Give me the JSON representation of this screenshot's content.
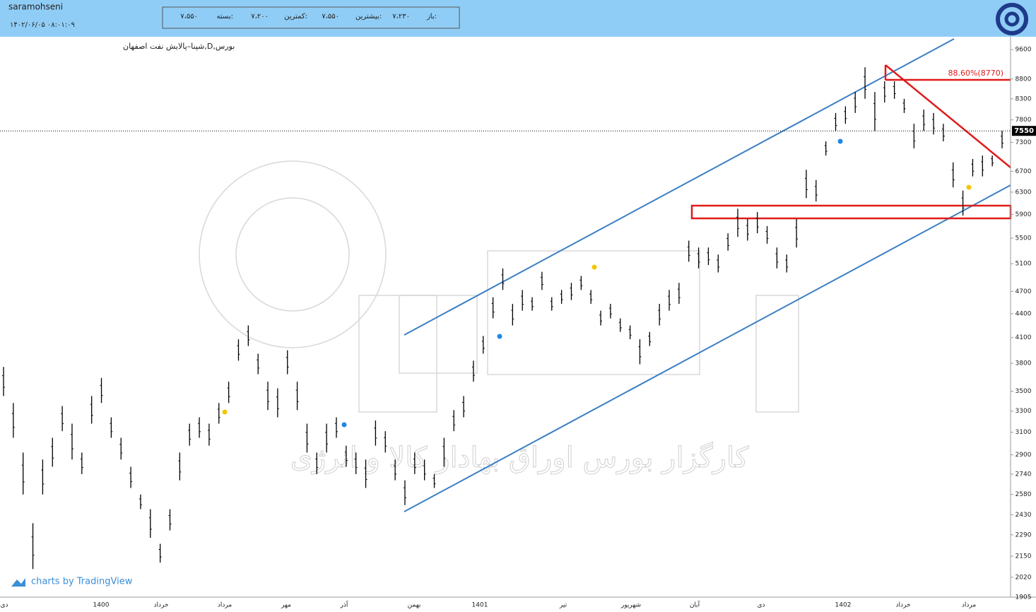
{
  "header": {
    "user": "saramohseni",
    "datetime": "۱۴۰۲/۰۶/۰۵ ۰۸:۰۱:۰۹",
    "ohlc": [
      {
        "label": "باز:",
        "value": "۷،۲۳۰"
      },
      {
        "label": "بیشترین:",
        "value": "۷،۵۵۰"
      },
      {
        "label": "کمترین:",
        "value": "۷،۲۰۰"
      },
      {
        "label": "بسته:",
        "value": "۷،۵۵۰"
      }
    ]
  },
  "chart_data": {
    "type": "ohlc",
    "title": "بورس,D,شپنا–پالایش نفت اصفهان",
    "high": [
      3760,
      3380,
      2920,
      2370,
      2860,
      3050,
      3350,
      3180,
      2920,
      3450,
      3640,
      3240,
      3050,
      2800,
      2580,
      2470,
      2230,
      2470,
      2920,
      3180,
      3240,
      3180,
      3380,
      3600,
      4080,
      4250,
      3910,
      3600,
      3530,
      3950,
      3600,
      3180,
      2920,
      3180,
      3240,
      2980,
      2920,
      2860,
      3210,
      3110,
      2860,
      2690,
      2920,
      2860,
      2740,
      3050,
      3310,
      3450,
      3830,
      4120,
      4620,
      5030,
      4530,
      4720,
      4620,
      4980,
      4620,
      4720,
      4820,
      4920,
      4720,
      4440,
      4530,
      4340,
      4250,
      4080,
      4170,
      4530,
      4720,
      4820,
      5460,
      5350,
      5350,
      5240,
      5580,
      6000,
      5820,
      5940,
      5700,
      5350,
      5240,
      5820,
      6730,
      6530,
      7320,
      7960,
      8120,
      8470,
      9110,
      8470,
      8740,
      8740,
      8300,
      7710,
      8040,
      7960,
      7710,
      6880,
      6330,
      6950,
      7020,
      7020,
      7550
    ],
    "low": [
      3450,
      3050,
      2580,
      2070,
      2580,
      2800,
      3110,
      2860,
      2740,
      3180,
      3380,
      3050,
      2860,
      2630,
      2470,
      2270,
      2110,
      2320,
      2690,
      2980,
      3050,
      2980,
      3180,
      3380,
      3830,
      4000,
      3680,
      3310,
      3240,
      3680,
      3310,
      2920,
      2740,
      2920,
      3050,
      2800,
      2740,
      2630,
      2980,
      2920,
      2690,
      2500,
      2740,
      2690,
      2630,
      2800,
      3110,
      3240,
      3600,
      3910,
      4340,
      4720,
      4250,
      4440,
      4440,
      4720,
      4440,
      4530,
      4580,
      4720,
      4530,
      4250,
      4340,
      4170,
      4080,
      3790,
      4000,
      4250,
      4440,
      4530,
      5130,
      5030,
      5080,
      4970,
      5300,
      5520,
      5460,
      5580,
      5410,
      5030,
      4970,
      5350,
      6190,
      6130,
      7020,
      7550,
      7710,
      7960,
      8300,
      7550,
      8210,
      8300,
      7960,
      7170,
      7550,
      7470,
      7320,
      6390,
      5880,
      6600,
      6600,
      6800,
      7170
    ],
    "color": "#000000",
    "log_scale": true,
    "ylim": [
      1905,
      9970
    ],
    "yticks": [
      9600,
      8800,
      8300,
      7800,
      7300,
      6700,
      6300,
      5900,
      5500,
      5100,
      4700,
      4400,
      4100,
      3800,
      3500,
      3300,
      3100,
      2900,
      2740,
      2580,
      2430,
      2290,
      2150,
      2020,
      1905
    ],
    "last_price": 7550,
    "annotation": "88.60%(8770)",
    "x_labels": [
      "دی",
      "1400",
      "خرداد",
      "مرداد",
      "مهر",
      "آذر",
      "بهمن",
      "1401",
      "تیر",
      "شهریور",
      "آبان",
      "دی",
      "1402",
      "خرداد",
      "مرداد"
    ],
    "watermark": "کارگزار بورس اوراق بهادار کالا و انرژی",
    "credit": "charts by TradingView"
  }
}
